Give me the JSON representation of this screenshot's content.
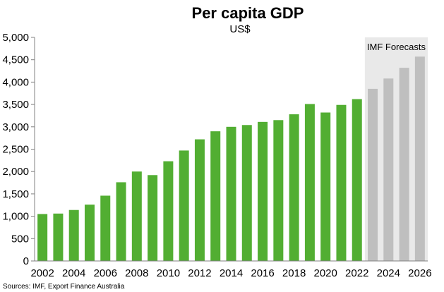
{
  "chart_data": {
    "type": "bar",
    "title": "Per capita GDP",
    "subtitle": "US$",
    "xlabel": "",
    "ylabel": "",
    "ylim": [
      0,
      5000
    ],
    "ytick_step": 500,
    "yticks": [
      "0",
      "500",
      "1,000",
      "1,500",
      "2,000",
      "2,500",
      "3,000",
      "3,500",
      "4,000",
      "4,500",
      "5,000"
    ],
    "categories": [
      "2002",
      "2003",
      "2004",
      "2005",
      "2006",
      "2007",
      "2008",
      "2009",
      "2010",
      "2011",
      "2012",
      "2013",
      "2014",
      "2015",
      "2016",
      "2017",
      "2018",
      "2019",
      "2020",
      "2021",
      "2022",
      "2023",
      "2024",
      "2025",
      "2026"
    ],
    "xtick_labels": [
      "2002",
      "2004",
      "2006",
      "2008",
      "2010",
      "2012",
      "2014",
      "2016",
      "2018",
      "2020",
      "2022",
      "2024",
      "2026"
    ],
    "values": [
      1050,
      1060,
      1140,
      1260,
      1460,
      1760,
      2000,
      1920,
      2230,
      2470,
      2720,
      2900,
      3000,
      3040,
      3110,
      3150,
      3280,
      3510,
      3320,
      3490,
      3620,
      3850,
      4080,
      4320,
      4570
    ],
    "forecast_start_index": 21,
    "forecast_label": "IMF Forecasts",
    "colors": {
      "actual": "#52ae32",
      "forecast": "#bfbfbf",
      "forecast_band": "#e9e9e9"
    },
    "grid": false,
    "legend": "none",
    "source": "Sources: IMF, Export Finance Australia"
  }
}
